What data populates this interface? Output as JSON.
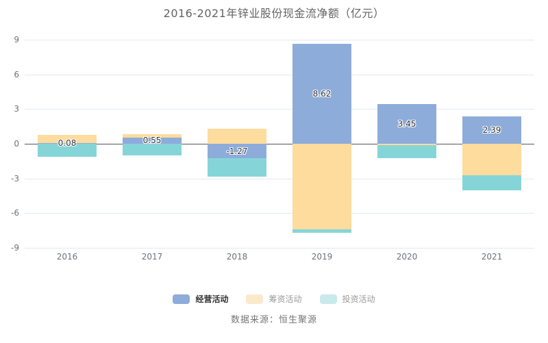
{
  "source": "数据来源：恒生聚源",
  "chart_data": {
    "type": "bar",
    "stacked": true,
    "title": "2016-2021年锌业股份现金流净额（亿元）",
    "xlabel": "",
    "ylabel": "",
    "categories": [
      "2016",
      "2017",
      "2018",
      "2019",
      "2020",
      "2021"
    ],
    "series": [
      {
        "key": "operating",
        "name": "经营活动",
        "color": "#8DACDA",
        "values": [
          0.08,
          0.55,
          -1.27,
          8.62,
          3.45,
          2.39
        ]
      },
      {
        "key": "financing",
        "name": "筹资活动",
        "color": "#FDDC9E",
        "values": [
          0.7,
          0.3,
          1.3,
          -7.4,
          -0.12,
          -2.7
        ]
      },
      {
        "key": "investing",
        "name": "投资活动",
        "color": "#85D5D8",
        "values": [
          -1.1,
          -1.0,
          -1.6,
          -0.3,
          -1.1,
          -1.3
        ]
      }
    ],
    "data_labels": {
      "series": "经营活动",
      "values": [
        "0.08",
        "0.55",
        "-1.27",
        "8.62",
        "3.45",
        "2.39"
      ]
    },
    "yticks": [
      9,
      6,
      3,
      0,
      -3,
      -6,
      -9
    ],
    "ylim": [
      -9,
      9
    ],
    "grid": true,
    "legend_position": "bottom",
    "legend": [
      {
        "key": "operating",
        "label": "经营活动",
        "swatch": "#8DACDA",
        "text_color": "#333333",
        "emphasis": true
      },
      {
        "key": "financing",
        "label": "筹资活动",
        "swatch": "#FBE9CB",
        "text_color": "#999999",
        "emphasis": false
      },
      {
        "key": "investing",
        "label": "投资活动",
        "swatch": "#C9EAEA",
        "text_color": "#999999",
        "emphasis": false
      }
    ]
  }
}
